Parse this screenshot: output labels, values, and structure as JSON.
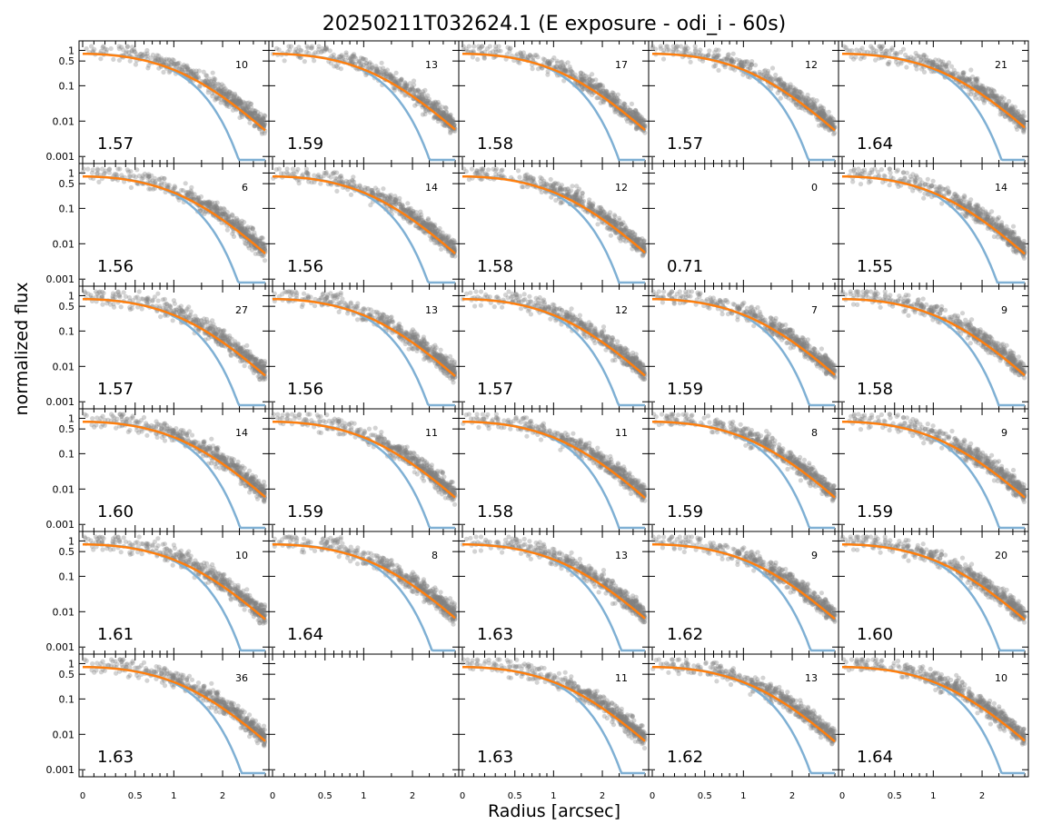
{
  "figure": {
    "title": "20250211T032624.1 (E exposure - odi_i - 60s)",
    "xlabel": "Radius [arcsec]",
    "ylabel": "normalized flux"
  },
  "colors": {
    "points": "#808080",
    "orange_curve": "#ff7f0e",
    "blue_curve": "#7fb0d4",
    "axes": "#000000"
  },
  "chart_data": {
    "type": "scatter",
    "layout": "grid 6 rows x 5 columns of small-multiple panels, shared axes",
    "x_scale": "asinh-like (compressed at large radius)",
    "y_scale": "log",
    "xlim": [
      0,
      3.5
    ],
    "ylim": [
      0.0008,
      1.3
    ],
    "x_ticks": [
      {
        "value": 0,
        "label": "0"
      },
      {
        "value": 0.5,
        "label": "0.5"
      },
      {
        "value": 1,
        "label": "1"
      },
      {
        "value": 2,
        "label": "2"
      }
    ],
    "y_ticks": [
      {
        "value": 1,
        "label": "1"
      },
      {
        "value": 0.5,
        "label": "0.5"
      },
      {
        "value": 0.1,
        "label": "0.1"
      },
      {
        "value": 0.01,
        "label": "0.01"
      },
      {
        "value": 0.001,
        "label": "0.001"
      }
    ],
    "panels": [
      {
        "row": 0,
        "col": 0,
        "fwhm": "1.57",
        "count": "10",
        "has_data": true
      },
      {
        "row": 0,
        "col": 1,
        "fwhm": "1.59",
        "count": "13",
        "has_data": true
      },
      {
        "row": 0,
        "col": 2,
        "fwhm": "1.58",
        "count": "17",
        "has_data": true
      },
      {
        "row": 0,
        "col": 3,
        "fwhm": "1.57",
        "count": "12",
        "has_data": true
      },
      {
        "row": 0,
        "col": 4,
        "fwhm": "1.64",
        "count": "21",
        "has_data": true
      },
      {
        "row": 1,
        "col": 0,
        "fwhm": "1.56",
        "count": "6",
        "has_data": true
      },
      {
        "row": 1,
        "col": 1,
        "fwhm": "1.56",
        "count": "14",
        "has_data": true
      },
      {
        "row": 1,
        "col": 2,
        "fwhm": "1.58",
        "count": "12",
        "has_data": true
      },
      {
        "row": 1,
        "col": 3,
        "fwhm": "0.71",
        "count": "0",
        "has_data": false
      },
      {
        "row": 1,
        "col": 4,
        "fwhm": "1.55",
        "count": "14",
        "has_data": true
      },
      {
        "row": 2,
        "col": 0,
        "fwhm": "1.57",
        "count": "27",
        "has_data": true
      },
      {
        "row": 2,
        "col": 1,
        "fwhm": "1.56",
        "count": "13",
        "has_data": true
      },
      {
        "row": 2,
        "col": 2,
        "fwhm": "1.57",
        "count": "12",
        "has_data": true
      },
      {
        "row": 2,
        "col": 3,
        "fwhm": "1.59",
        "count": "7",
        "has_data": true
      },
      {
        "row": 2,
        "col": 4,
        "fwhm": "1.58",
        "count": "9",
        "has_data": true
      },
      {
        "row": 3,
        "col": 0,
        "fwhm": "1.60",
        "count": "14",
        "has_data": true
      },
      {
        "row": 3,
        "col": 1,
        "fwhm": "1.59",
        "count": "11",
        "has_data": true
      },
      {
        "row": 3,
        "col": 2,
        "fwhm": "1.58",
        "count": "11",
        "has_data": true
      },
      {
        "row": 3,
        "col": 3,
        "fwhm": "1.59",
        "count": "8",
        "has_data": true
      },
      {
        "row": 3,
        "col": 4,
        "fwhm": "1.59",
        "count": "9",
        "has_data": true
      },
      {
        "row": 4,
        "col": 0,
        "fwhm": "1.61",
        "count": "10",
        "has_data": true
      },
      {
        "row": 4,
        "col": 1,
        "fwhm": "1.64",
        "count": "8",
        "has_data": true
      },
      {
        "row": 4,
        "col": 2,
        "fwhm": "1.63",
        "count": "13",
        "has_data": true
      },
      {
        "row": 4,
        "col": 3,
        "fwhm": "1.62",
        "count": "9",
        "has_data": true
      },
      {
        "row": 4,
        "col": 4,
        "fwhm": "1.60",
        "count": "20",
        "has_data": true
      },
      {
        "row": 5,
        "col": 0,
        "fwhm": "1.63",
        "count": "36",
        "has_data": true
      },
      {
        "row": 5,
        "col": 1,
        "fwhm": "",
        "count": "",
        "has_data": false
      },
      {
        "row": 5,
        "col": 2,
        "fwhm": "1.63",
        "count": "11",
        "has_data": true
      },
      {
        "row": 5,
        "col": 3,
        "fwhm": "1.62",
        "count": "13",
        "has_data": true
      },
      {
        "row": 5,
        "col": 4,
        "fwhm": "1.64",
        "count": "10",
        "has_data": true
      }
    ]
  }
}
